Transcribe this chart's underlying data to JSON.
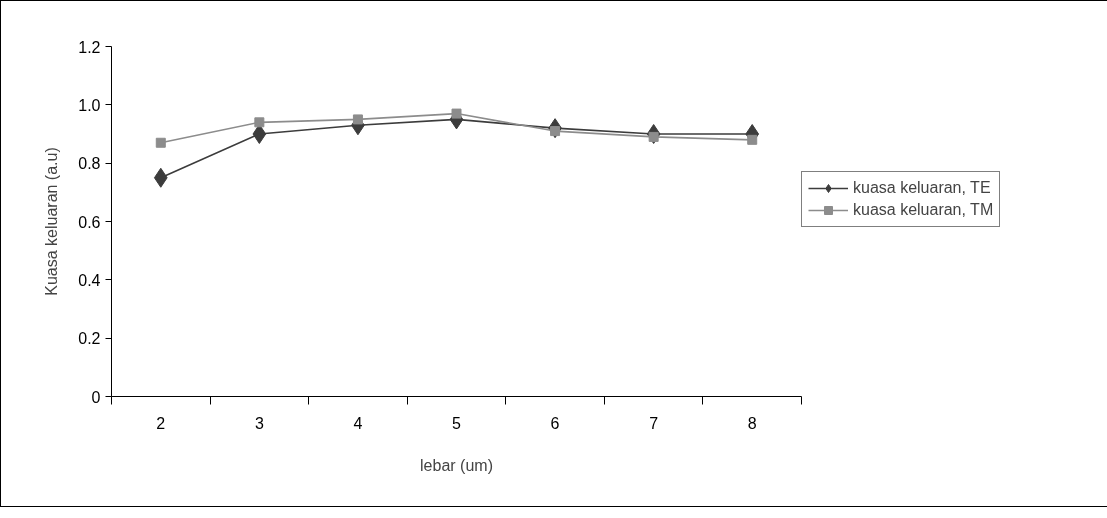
{
  "chart_data": {
    "type": "line",
    "xlabel": "lebar (um)",
    "ylabel": "Kuasa keluaran (a.u)",
    "categories": [
      "2",
      "3",
      "4",
      "5",
      "6",
      "7",
      "8"
    ],
    "series": [
      {
        "name": "kuasa keluaran, TE",
        "color": "#3c3c3c",
        "marker": "diamond",
        "values": [
          0.75,
          0.9,
          0.93,
          0.95,
          0.92,
          0.9,
          0.9
        ]
      },
      {
        "name": "kuasa keluaran, TM",
        "color": "#8c8c8c",
        "marker": "square",
        "values": [
          0.87,
          0.94,
          0.95,
          0.97,
          0.91,
          0.89,
          0.88
        ]
      }
    ],
    "ylim": [
      0,
      1.2
    ],
    "yticks": [
      0,
      0.2,
      0.4,
      0.6,
      0.8,
      {
        "value": 1.0,
        "label": "1.0"
      },
      1.2
    ],
    "grid": false,
    "legend": "right",
    "line_style": "solid"
  }
}
